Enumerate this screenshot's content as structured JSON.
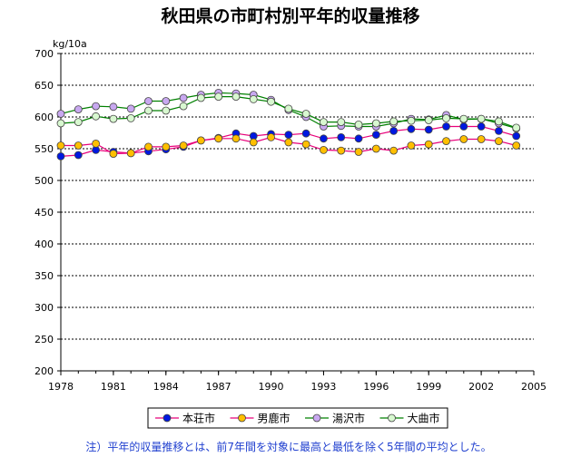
{
  "chart_data": {
    "type": "line",
    "title": "秋田県の市町村別平年的収量推移",
    "ylabel": "kg/10a",
    "xlabel": "",
    "ylim": [
      200,
      700
    ],
    "yticks": [
      200,
      250,
      300,
      350,
      400,
      450,
      500,
      550,
      600,
      650,
      700
    ],
    "xlim": [
      1978,
      2005
    ],
    "xticks": [
      1978,
      1981,
      1984,
      1987,
      1990,
      1993,
      1996,
      1999,
      2002,
      2005
    ],
    "grid": "y-dashed",
    "legend_position": "bottom",
    "note": "注）平年的収量推移とは、前7年間を対象に最高と最低を除く5年間の平均とした。",
    "series": [
      {
        "name": "本荘市",
        "line_color": "#e8007a",
        "marker_color": "#0018e0",
        "x": [
          1978,
          1979,
          1980,
          1981,
          1982,
          1983,
          1984,
          1985,
          1986,
          1987,
          1988,
          1989,
          1990,
          1991,
          1992,
          1993,
          1994,
          1995,
          1996,
          1997,
          1998,
          1999,
          2000,
          2001,
          2002,
          2003,
          2004
        ],
        "values": [
          538,
          540,
          548,
          545,
          543,
          546,
          549,
          553,
          563,
          567,
          574,
          570,
          573,
          572,
          574,
          566,
          568,
          566,
          572,
          578,
          581,
          580,
          585,
          585,
          585,
          578,
          570
        ]
      },
      {
        "name": "男鹿市",
        "line_color": "#e8007a",
        "marker_color": "#ffbf00",
        "x": [
          1978,
          1979,
          1980,
          1981,
          1982,
          1983,
          1984,
          1985,
          1986,
          1987,
          1988,
          1989,
          1990,
          1991,
          1992,
          1993,
          1994,
          1995,
          1996,
          1997,
          1998,
          1999,
          2000,
          2001,
          2002,
          2003,
          2004
        ],
        "values": [
          555,
          555,
          558,
          542,
          543,
          553,
          553,
          555,
          563,
          566,
          566,
          560,
          568,
          560,
          557,
          548,
          547,
          545,
          550,
          547,
          555,
          557,
          562,
          565,
          565,
          562,
          555
        ]
      },
      {
        "name": "湯沢市",
        "line_color": "#008000",
        "marker_color": "#c8a8f0",
        "x": [
          1978,
          1979,
          1980,
          1981,
          1982,
          1983,
          1984,
          1985,
          1986,
          1987,
          1988,
          1989,
          1990,
          1991,
          1992,
          1993,
          1994,
          1995,
          1996,
          1997,
          1998,
          1999,
          2000,
          2001,
          2002,
          2003,
          2004
        ],
        "values": [
          605,
          612,
          617,
          616,
          613,
          625,
          625,
          630,
          635,
          638,
          637,
          635,
          627,
          611,
          600,
          585,
          586,
          585,
          585,
          590,
          597,
          596,
          603,
          596,
          597,
          590,
          582
        ]
      },
      {
        "name": "大曲市",
        "line_color": "#008000",
        "marker_color": "#d8f8d0",
        "x": [
          1978,
          1979,
          1980,
          1981,
          1982,
          1983,
          1984,
          1985,
          1986,
          1987,
          1988,
          1989,
          1990,
          1991,
          1992,
          1993,
          1994,
          1995,
          1996,
          1997,
          1998,
          1999,
          2000,
          2001,
          2002,
          2003,
          2004
        ],
        "values": [
          590,
          592,
          601,
          597,
          598,
          610,
          610,
          617,
          630,
          632,
          632,
          628,
          624,
          613,
          605,
          592,
          592,
          588,
          590,
          593,
          594,
          595,
          598,
          597,
          597,
          593,
          583
        ]
      }
    ]
  }
}
